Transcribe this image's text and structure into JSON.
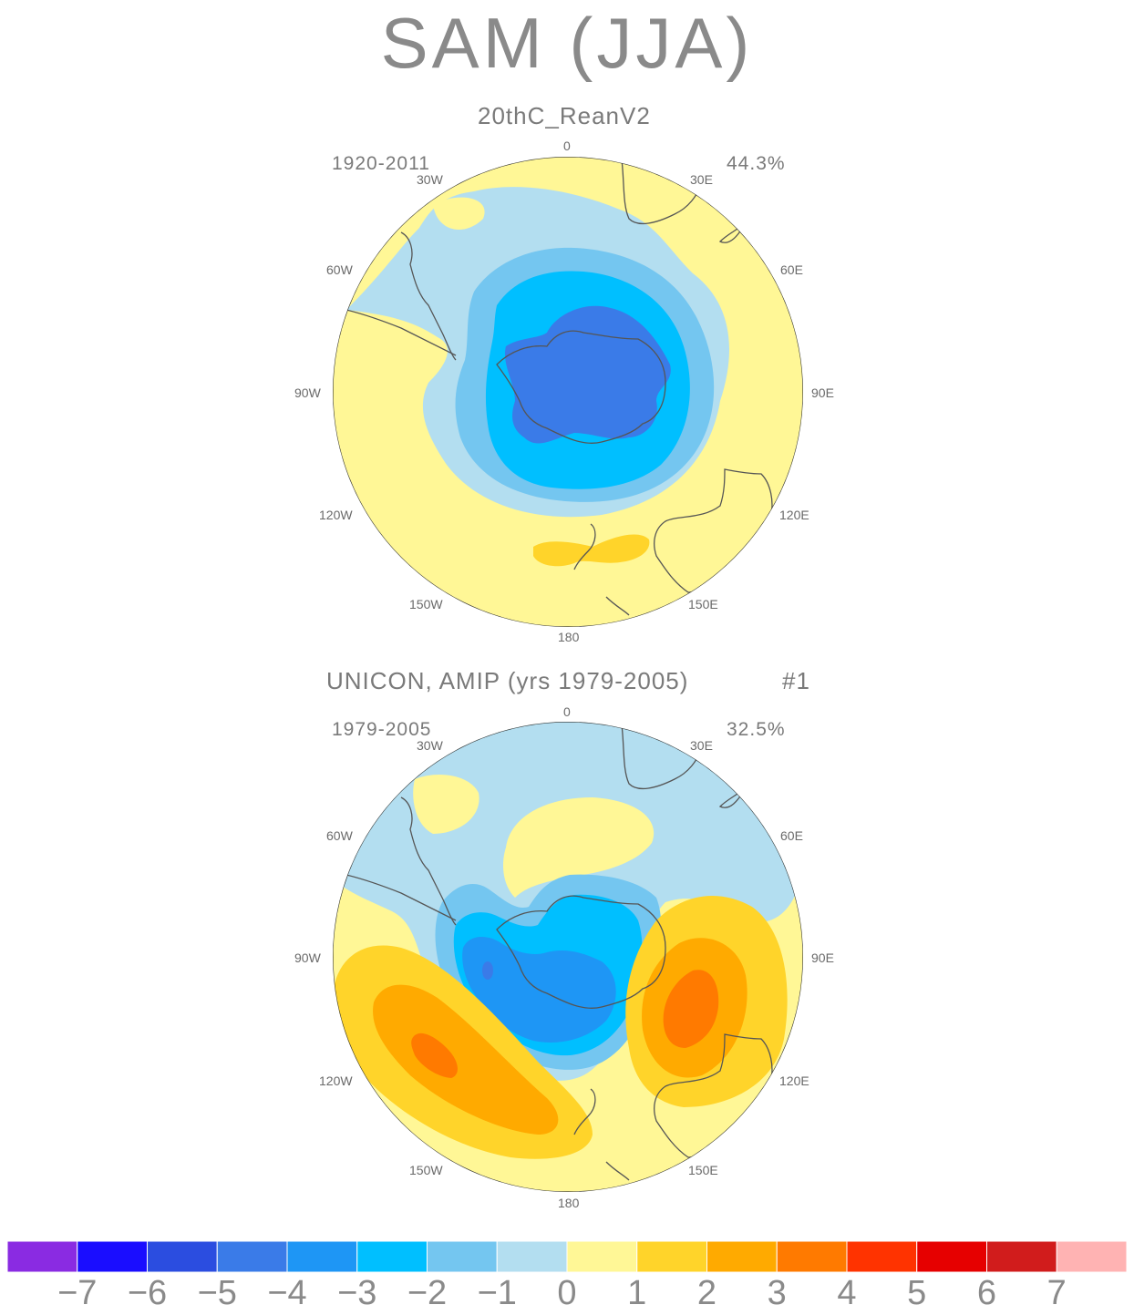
{
  "title": "SAM (JJA)",
  "panels": [
    {
      "subtitle": "20thC_ReanV2",
      "period": "1920-2011",
      "variance": "44.3%",
      "panel_number": ""
    },
    {
      "subtitle": "UNICON, AMIP (yrs 1979-2005)",
      "period": "1979-2005",
      "variance": "32.5%",
      "panel_number": "#1"
    }
  ],
  "longitude_labels": {
    "top": "0",
    "30W": "30W",
    "30E": "30E",
    "60W": "60W",
    "60E": "60E",
    "90W": "90W",
    "90E": "90E",
    "120W": "120W",
    "120E": "120E",
    "150W": "150W",
    "150E": "150E",
    "bottom": "180"
  },
  "colorbar": {
    "labels": [
      "-7",
      "-6",
      "-5",
      "-4",
      "-3",
      "-2",
      "-1",
      "0",
      "1",
      "2",
      "3",
      "4",
      "5",
      "6",
      "7"
    ],
    "colors": [
      "#8a2be2",
      "#1a0dff",
      "#2b4de0",
      "#3a7be8",
      "#1e96f5",
      "#00bfff",
      "#74c6f0",
      "#b3def0",
      "#fff796",
      "#ffd42a",
      "#ffaa00",
      "#ff7a00",
      "#ff3300",
      "#e60000",
      "#d11c1c",
      "#ffb3b3"
    ]
  }
}
